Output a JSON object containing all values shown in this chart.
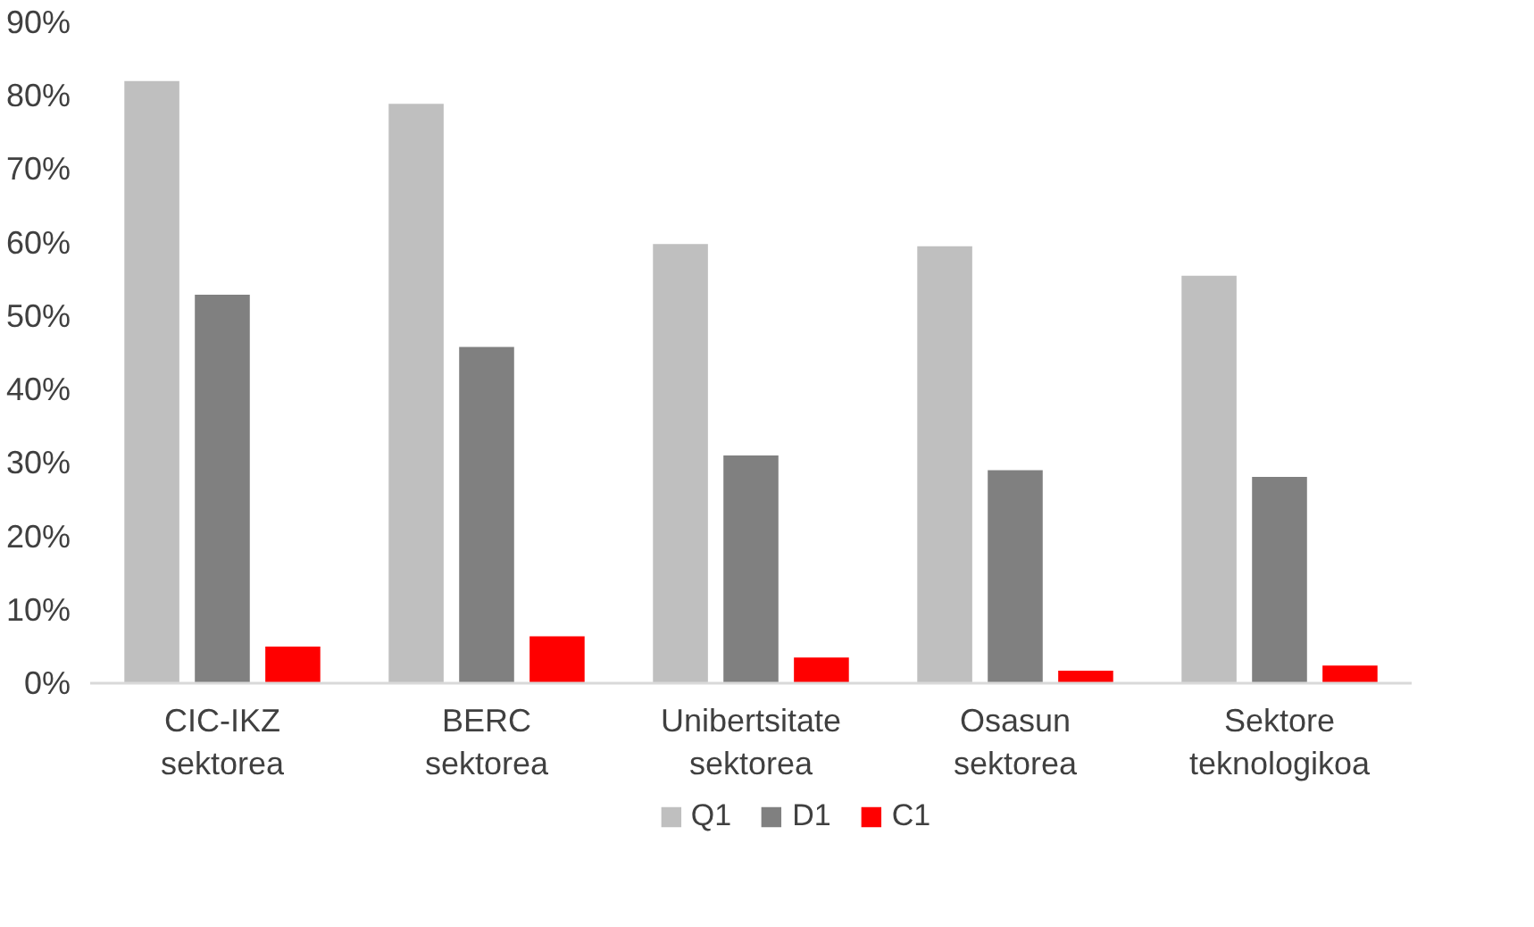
{
  "chart_data": {
    "type": "bar",
    "categories": [
      "CIC-IKZ sektorea",
      "BERC sektorea",
      "Unibertsitate sektorea",
      "Osasun sektorea",
      "Sektore teknologikoa"
    ],
    "series": [
      {
        "name": "Q1",
        "color": "#bfbfbf",
        "values": [
          82,
          78.9,
          59.8,
          59.5,
          55.5
        ]
      },
      {
        "name": "D1",
        "color": "#808080",
        "values": [
          52.9,
          45.8,
          31,
          29,
          28.1
        ]
      },
      {
        "name": "C1",
        "color": "#ff0000",
        "values": [
          5,
          6.4,
          3.5,
          1.7,
          2.4
        ]
      }
    ],
    "ylim": [
      0,
      90
    ],
    "yticks": [
      {
        "value": 0,
        "label": "0%"
      },
      {
        "value": 10,
        "label": "10%"
      },
      {
        "value": 20,
        "label": "20%"
      },
      {
        "value": 30,
        "label": "30%"
      },
      {
        "value": 40,
        "label": "40%"
      },
      {
        "value": 50,
        "label": "50%"
      },
      {
        "value": 60,
        "label": "60%"
      },
      {
        "value": 70,
        "label": "70%"
      },
      {
        "value": 80,
        "label": "80%"
      },
      {
        "value": 90,
        "label": "90%"
      }
    ],
    "grid": false,
    "legend": "bottom"
  }
}
